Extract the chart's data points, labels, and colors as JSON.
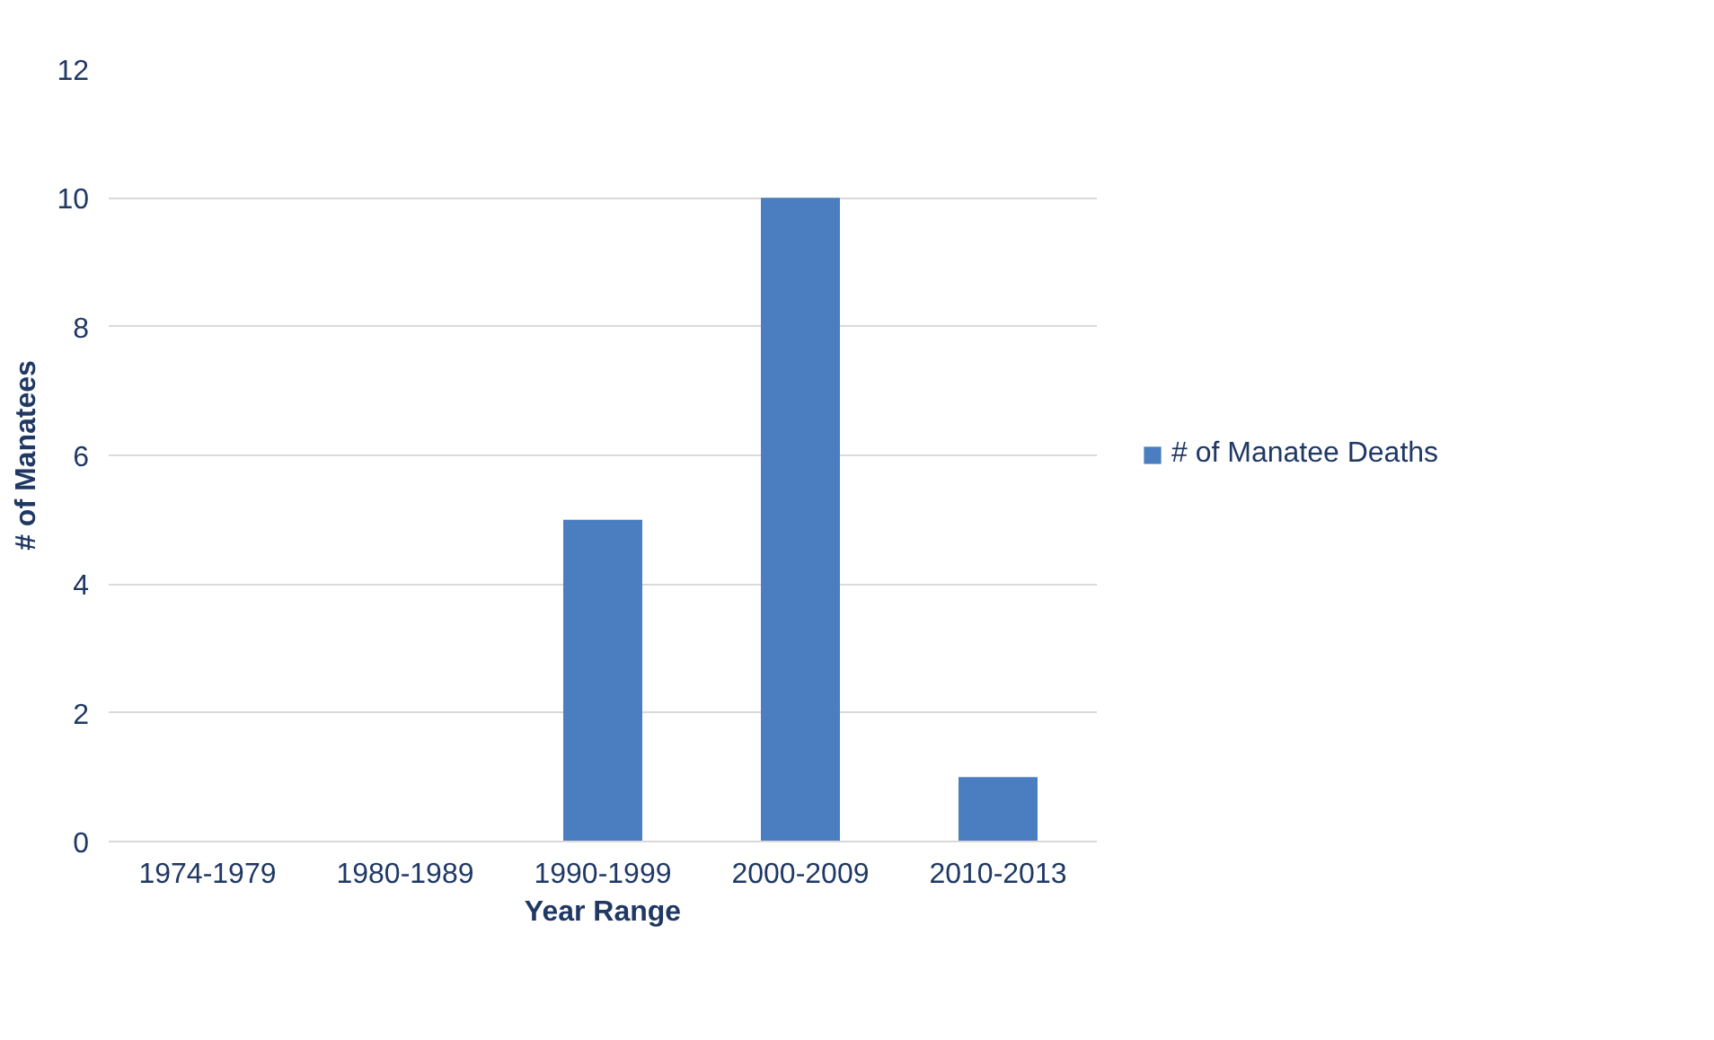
{
  "chart_data": {
    "type": "bar",
    "xlabel": "Year Range",
    "ylabel": "# of Manatees",
    "categories": [
      "1974-1979",
      "1980-1989",
      "1990-1999",
      "2000-2009",
      "2010-2013"
    ],
    "series": [
      {
        "name": "# of Manatee Deaths",
        "color": "#4a7ec0",
        "values": [
          0,
          0,
          5,
          10,
          1
        ]
      }
    ],
    "ylim": [
      0,
      12
    ],
    "yticks": [
      0,
      2,
      4,
      6,
      8,
      10,
      12
    ],
    "grid": "y",
    "legend": "right"
  }
}
